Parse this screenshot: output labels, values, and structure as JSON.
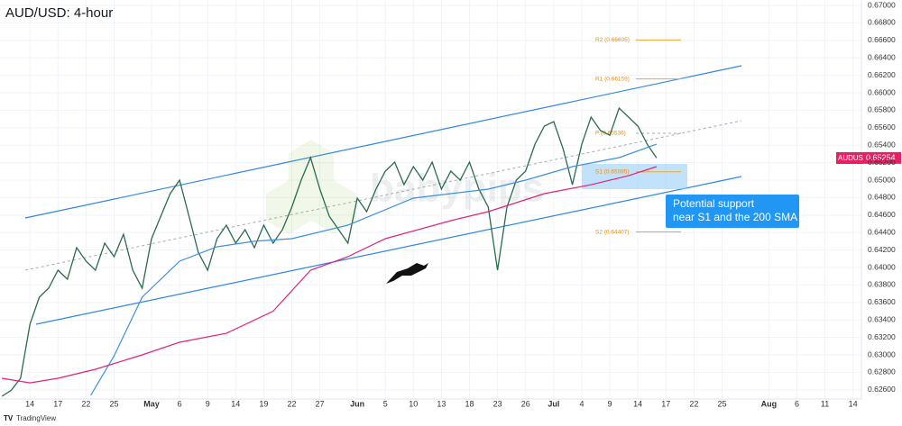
{
  "chart_data": {
    "type": "line",
    "title": "AUD/USD: 4-hour",
    "symbol": "AUDUSD",
    "last_price": {
      "value": 0.65254,
      "label": "0.65254"
    },
    "annotation": "Potential support\nnear S1 and the 200 SMA",
    "watermark": "babypips",
    "footer": "TradingView",
    "xlim": [
      -3.2,
      88.9
    ],
    "xticks": [
      {
        "value": 0,
        "label": "14"
      },
      {
        "value": 3,
        "label": "17"
      },
      {
        "value": 6,
        "label": "22"
      },
      {
        "value": 9,
        "label": "25"
      },
      {
        "value": 13,
        "label": "May"
      },
      {
        "value": 16,
        "label": "6"
      },
      {
        "value": 19,
        "label": "9"
      },
      {
        "value": 22,
        "label": "14"
      },
      {
        "value": 25,
        "label": "19"
      },
      {
        "value": 28,
        "label": "22"
      },
      {
        "value": 31,
        "label": "27"
      },
      {
        "value": 35,
        "label": "Jun"
      },
      {
        "value": 38,
        "label": "5"
      },
      {
        "value": 41,
        "label": "10"
      },
      {
        "value": 44,
        "label": "13"
      },
      {
        "value": 47,
        "label": "18"
      },
      {
        "value": 50,
        "label": "23"
      },
      {
        "value": 53,
        "label": "26"
      },
      {
        "value": 56,
        "label": "Jul"
      },
      {
        "value": 59,
        "label": "4"
      },
      {
        "value": 62,
        "label": "9"
      },
      {
        "value": 65,
        "label": "14"
      },
      {
        "value": 68,
        "label": "17"
      },
      {
        "value": 71,
        "label": "22"
      },
      {
        "value": 74,
        "label": "25"
      },
      {
        "value": 79,
        "label": "Aug"
      },
      {
        "value": 82,
        "label": "6"
      },
      {
        "value": 85,
        "label": "11"
      },
      {
        "value": 88,
        "label": "14"
      }
    ],
    "ylim": [
      0.62495,
      0.67062
    ],
    "yticks": [
      {
        "value": 0.626,
        "label": "0.62600"
      },
      {
        "value": 0.628,
        "label": "0.62800"
      },
      {
        "value": 0.63,
        "label": "0.63000"
      },
      {
        "value": 0.632,
        "label": "0.63200"
      },
      {
        "value": 0.634,
        "label": "0.63400"
      },
      {
        "value": 0.636,
        "label": "0.63600"
      },
      {
        "value": 0.638,
        "label": "0.63800"
      },
      {
        "value": 0.64,
        "label": "0.64000"
      },
      {
        "value": 0.642,
        "label": "0.64200"
      },
      {
        "value": 0.644,
        "label": "0.64400"
      },
      {
        "value": 0.646,
        "label": "0.64600"
      },
      {
        "value": 0.648,
        "label": "0.64800"
      },
      {
        "value": 0.65,
        "label": "0.65000"
      },
      {
        "value": 0.652,
        "label": "0.65200"
      },
      {
        "value": 0.654,
        "label": "0.65400"
      },
      {
        "value": 0.656,
        "label": "0.65600"
      },
      {
        "value": 0.658,
        "label": "0.65800"
      },
      {
        "value": 0.66,
        "label": "0.66000"
      },
      {
        "value": 0.662,
        "label": "0.66200"
      },
      {
        "value": 0.664,
        "label": "0.66400"
      },
      {
        "value": 0.666,
        "label": "0.66600"
      },
      {
        "value": 0.668,
        "label": "0.66800"
      },
      {
        "value": 0.67,
        "label": "0.67000"
      }
    ],
    "grid": true,
    "pivots": [
      {
        "label": "R2 (0.66605)",
        "value": 0.66605,
        "dashed": false
      },
      {
        "label": "R1 (0.66159)",
        "value": 0.66159,
        "dashed": false
      },
      {
        "label": "P (0.65536)",
        "value": 0.65536,
        "dashed": true
      },
      {
        "label": "S1 (0.65095)",
        "value": 0.65095,
        "dashed": false
      },
      {
        "label": "S2 (0.64407)",
        "value": 0.64407,
        "dashed": false
      }
    ],
    "series": [
      {
        "color": "#2b6a4d",
        "x": [
          -3,
          -2,
          -1,
          0,
          1,
          2,
          3,
          4,
          5,
          6,
          7,
          8,
          9,
          10,
          11,
          12,
          13,
          14,
          15,
          16,
          17,
          18,
          19,
          20,
          21,
          22,
          23,
          24,
          25,
          26,
          27,
          28,
          29,
          30,
          31,
          32,
          33,
          34,
          35,
          36,
          37,
          38,
          39,
          40,
          41,
          42,
          43,
          44,
          45,
          46,
          47,
          48,
          49,
          50,
          51,
          52,
          53,
          54,
          55,
          56,
          57,
          58,
          59,
          60,
          61,
          62,
          63,
          64,
          65,
          66,
          67
        ],
        "values": [
          0.62526,
          0.62594,
          0.62732,
          0.6335,
          0.6366,
          0.63763,
          0.63969,
          0.63866,
          0.64227,
          0.64072,
          0.63969,
          0.64278,
          0.64124,
          0.64381,
          0.63969,
          0.63763,
          0.6433,
          0.64588,
          0.64845,
          0.65,
          0.64588,
          0.64175,
          0.63969,
          0.6433,
          0.64485,
          0.64278,
          0.64433,
          0.64227,
          0.64485,
          0.64278,
          0.64433,
          0.64691,
          0.65,
          0.65258,
          0.64897,
          0.64588,
          0.64433,
          0.64278,
          0.64794,
          0.64639,
          0.64897,
          0.65103,
          0.65206,
          0.64948,
          0.65155,
          0.65,
          0.65206,
          0.64897,
          0.65103,
          0.65,
          0.65206,
          0.64897,
          0.64691,
          0.63969,
          0.64691,
          0.65,
          0.65103,
          0.65412,
          0.65619,
          0.6567,
          0.65361,
          0.64948,
          0.65412,
          0.65722,
          0.65567,
          0.65515,
          0.65825,
          0.65722,
          0.65619,
          0.65412,
          0.65254
        ]
      },
      {
        "color": "#3d8fe0",
        "x": [
          6.5,
          9,
          12,
          16,
          20,
          24,
          28,
          34,
          41,
          49,
          53,
          58,
          63,
          67
        ],
        "values": [
          0.62536,
          0.62989,
          0.6366,
          0.64072,
          0.64237,
          0.643,
          0.6433,
          0.64485,
          0.64794,
          0.64897,
          0.65,
          0.65155,
          0.65258,
          0.65412
        ]
      },
      {
        "color": "#e0227a",
        "x": [
          -3,
          0,
          3,
          7,
          12,
          16,
          21,
          26,
          30,
          34,
          38,
          45,
          49,
          55,
          60,
          64,
          67
        ],
        "values": [
          0.62732,
          0.6268,
          0.62732,
          0.62835,
          0.63,
          0.63144,
          0.63247,
          0.635,
          0.63969,
          0.64124,
          0.6433,
          0.64536,
          0.64639,
          0.64845,
          0.64948,
          0.65051,
          0.65155
        ]
      }
    ]
  }
}
